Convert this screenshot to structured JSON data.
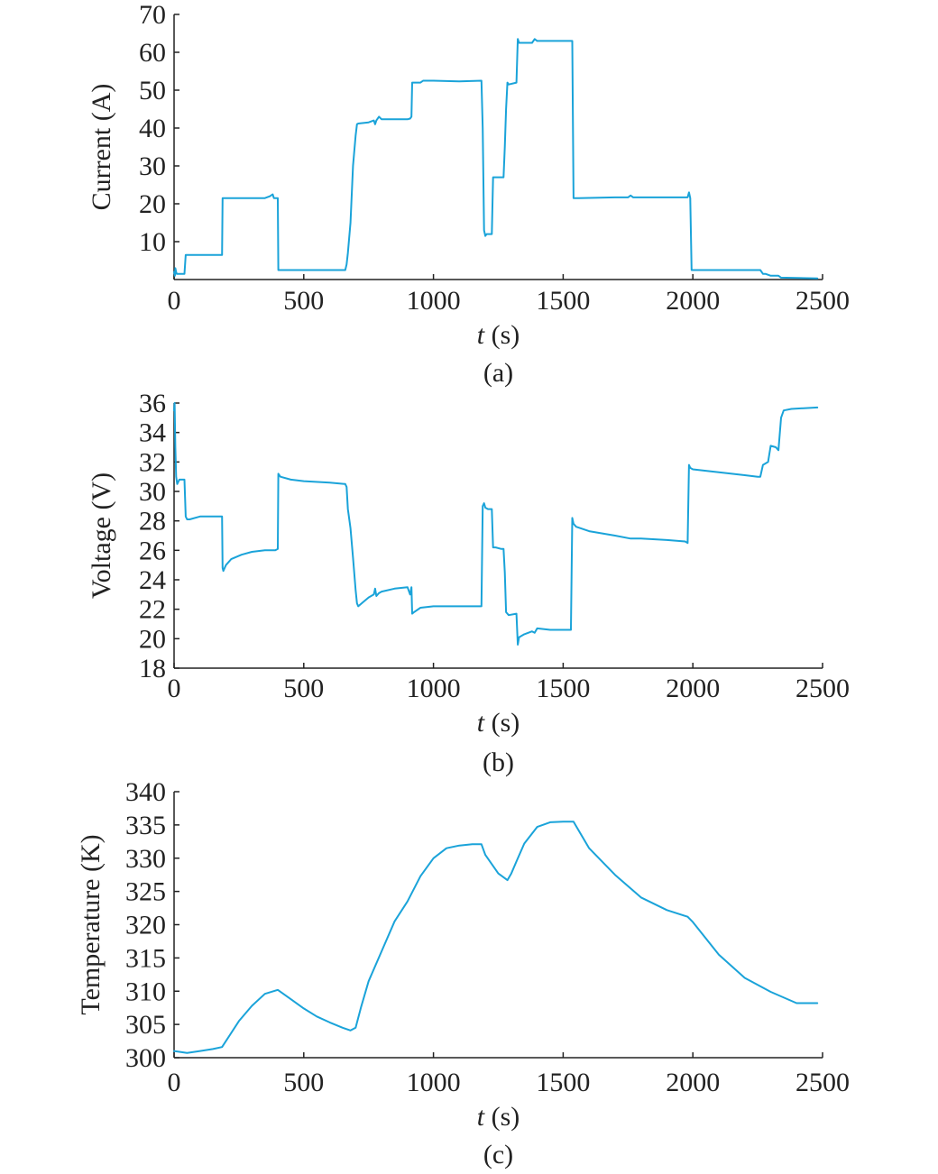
{
  "chart_data": [
    {
      "type": "line",
      "panel_label": "(a)",
      "xlabel": {
        "var": "t",
        "unit": " (s)"
      },
      "ylabel": "Current (A)",
      "xlim": [
        0,
        2500
      ],
      "ylim": [
        0,
        70
      ],
      "xticks": [
        "0",
        "500",
        "1000",
        "1500",
        "2000",
        "2500"
      ],
      "yticks": [
        "10",
        "20",
        "30",
        "40",
        "50",
        "60",
        "70"
      ],
      "grid": false,
      "line_color": "#1aa3d9",
      "series": [
        {
          "x": [
            0,
            3,
            5,
            8,
            10,
            40,
            45,
            185,
            187,
            300,
            350,
            370,
            380,
            385,
            390,
            400,
            402,
            660,
            665,
            670,
            680,
            690,
            700,
            705,
            710,
            750,
            770,
            775,
            780,
            790,
            800,
            900,
            910,
            915,
            918,
            925,
            950,
            960,
            1000,
            1100,
            1185,
            1190,
            1195,
            1200,
            1205,
            1210,
            1225,
            1230,
            1270,
            1275,
            1280,
            1285,
            1290,
            1320,
            1325,
            1330,
            1380,
            1390,
            1400,
            1530,
            1535,
            1540,
            1560,
            1700,
            1750,
            1760,
            1770,
            1900,
            1980,
            1985,
            1990,
            1995,
            2100,
            2250,
            2260,
            2270,
            2280,
            2300,
            2330,
            2340,
            2480
          ],
          "y": [
            2,
            1,
            3,
            2,
            1.5,
            1.5,
            6.5,
            6.5,
            21.5,
            21.5,
            21.5,
            22,
            22.5,
            21.5,
            21.5,
            21.5,
            2.5,
            2.5,
            4,
            7,
            15,
            30,
            38,
            41,
            41.2,
            41.5,
            42,
            41,
            42,
            43,
            42.3,
            42.3,
            42.5,
            43,
            52,
            52,
            52,
            52.5,
            52.5,
            52.3,
            52.5,
            40,
            13,
            11.5,
            12,
            12,
            12,
            27,
            27,
            35,
            45,
            52,
            51.5,
            52,
            63.5,
            62.5,
            62.5,
            63.5,
            63,
            63,
            63,
            21.5,
            21.5,
            21.7,
            21.7,
            22.2,
            21.7,
            21.7,
            21.7,
            23,
            21.5,
            2.5,
            2.5,
            2.5,
            2.5,
            1.5,
            1.5,
            1,
            1,
            0.5,
            0.3
          ]
        }
      ]
    },
    {
      "type": "line",
      "panel_label": "(b)",
      "xlabel": {
        "var": "t",
        "unit": " (s)"
      },
      "ylabel": "Voltage (V)",
      "xlim": [
        0,
        2500
      ],
      "ylim": [
        18,
        36
      ],
      "xticks": [
        "0",
        "500",
        "1000",
        "1500",
        "2000",
        "2500"
      ],
      "yticks": [
        "18",
        "20",
        "22",
        "24",
        "26",
        "28",
        "30",
        "32",
        "34",
        "36"
      ],
      "grid": false,
      "line_color": "#1aa3d9",
      "series": [
        {
          "x": [
            0,
            2,
            5,
            8,
            12,
            20,
            40,
            45,
            50,
            60,
            100,
            185,
            187,
            190,
            200,
            220,
            260,
            300,
            350,
            390,
            400,
            402,
            410,
            450,
            500,
            600,
            660,
            665,
            670,
            680,
            690,
            700,
            705,
            710,
            730,
            750,
            770,
            775,
            780,
            790,
            800,
            850,
            900,
            910,
            915,
            918,
            925,
            950,
            1000,
            1100,
            1185,
            1190,
            1195,
            1200,
            1210,
            1225,
            1230,
            1240,
            1260,
            1270,
            1275,
            1280,
            1290,
            1320,
            1325,
            1330,
            1350,
            1380,
            1390,
            1400,
            1450,
            1530,
            1535,
            1540,
            1550,
            1600,
            1700,
            1760,
            1800,
            1900,
            1970,
            1980,
            1985,
            1990,
            2000,
            2100,
            2200,
            2250,
            2260,
            2270,
            2280,
            2290,
            2300,
            2320,
            2330,
            2340,
            2350,
            2380,
            2480
          ],
          "y": [
            35.5,
            36,
            33,
            31,
            30.5,
            30.8,
            30.8,
            28.3,
            28.1,
            28.1,
            28.3,
            28.3,
            24.8,
            24.6,
            25,
            25.4,
            25.7,
            25.9,
            26.0,
            26.0,
            26.1,
            31.2,
            31.0,
            30.8,
            30.7,
            30.6,
            30.5,
            30.3,
            28.8,
            27.5,
            25.5,
            23.3,
            22.4,
            22.2,
            22.5,
            22.8,
            23.0,
            23.4,
            22.9,
            23.1,
            23.2,
            23.4,
            23.5,
            23.0,
            23.5,
            21.7,
            21.8,
            22.1,
            22.2,
            22.2,
            22.2,
            29.0,
            29.2,
            28.9,
            28.8,
            28.8,
            26.2,
            26.2,
            26.1,
            26.1,
            24.5,
            21.8,
            21.6,
            21.7,
            19.6,
            20.1,
            20.3,
            20.5,
            20.4,
            20.7,
            20.6,
            20.6,
            28.2,
            27.8,
            27.6,
            27.3,
            27.0,
            26.8,
            26.8,
            26.7,
            26.6,
            26.5,
            31.8,
            31.6,
            31.5,
            31.3,
            31.1,
            31.0,
            31.0,
            31.8,
            31.9,
            32.0,
            33.1,
            33.0,
            32.8,
            35.0,
            35.5,
            35.6,
            35.7
          ]
        }
      ]
    },
    {
      "type": "line",
      "panel_label": "(c)",
      "xlabel": {
        "var": "t",
        "unit": " (s)"
      },
      "ylabel": "Temperature (K)",
      "xlim": [
        0,
        2500
      ],
      "ylim": [
        300,
        340
      ],
      "xticks": [
        "0",
        "500",
        "1000",
        "1500",
        "2000",
        "2500"
      ],
      "yticks": [
        "300",
        "305",
        "310",
        "315",
        "320",
        "325",
        "330",
        "335",
        "340"
      ],
      "grid": false,
      "line_color": "#1aa3d9",
      "series": [
        {
          "x": [
            0,
            50,
            100,
            150,
            185,
            200,
            250,
            300,
            350,
            400,
            450,
            500,
            550,
            600,
            650,
            680,
            700,
            720,
            750,
            800,
            850,
            900,
            950,
            1000,
            1050,
            1100,
            1150,
            1185,
            1200,
            1250,
            1285,
            1300,
            1320,
            1350,
            1400,
            1450,
            1500,
            1540,
            1550,
            1600,
            1700,
            1800,
            1900,
            1980,
            2000,
            2100,
            2200,
            2300,
            2400,
            2480
          ],
          "y": [
            301,
            300.7,
            301.0,
            301.3,
            301.6,
            302.5,
            305.5,
            307.8,
            309.6,
            310.2,
            308.8,
            307.4,
            306.2,
            305.3,
            304.5,
            304.1,
            304.5,
            307.5,
            311.5,
            316.0,
            320.5,
            323.5,
            327.3,
            330.0,
            331.5,
            331.9,
            332.1,
            332.1,
            330.5,
            327.7,
            326.7,
            327.7,
            329.5,
            332.2,
            334.7,
            335.4,
            335.5,
            335.5,
            334.8,
            331.5,
            327.5,
            324.1,
            322.2,
            321.2,
            320.4,
            315.5,
            312.0,
            309.9,
            308.2,
            308.2
          ]
        }
      ]
    }
  ]
}
